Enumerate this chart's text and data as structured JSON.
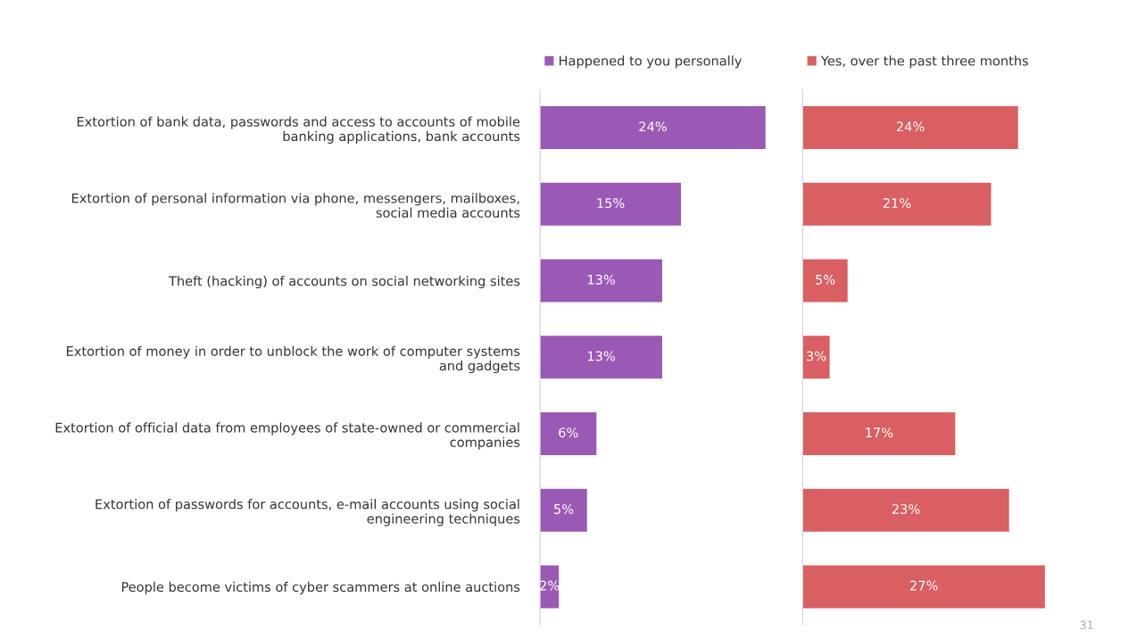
{
  "chart_data": [
    {
      "type": "bar",
      "orientation": "horizontal",
      "categories": [
        "Extortion of bank data, passwords and access to accounts of mobile banking applications, bank accounts",
        "Extortion of personal information via phone, messengers, mailboxes, social media accounts",
        "Theft (hacking) of accounts on social networking sites",
        "Extortion of money in order to unblock the work of computer systems and gadgets",
        "Extortion of official data from employees of state-owned or commercial companies",
        "Extortion of passwords for accounts, e-mail accounts using social engineering techniques",
        "People become victims of cyber scammers at online auctions"
      ],
      "series": [
        {
          "name": "Happened to you personally",
          "color": "#9b59b6",
          "values": [
            24,
            15,
            13,
            13,
            6,
            5,
            2
          ],
          "value_labels": [
            "24%",
            "15%",
            "13%",
            "13%",
            "6%",
            "5%",
            "2%"
          ]
        }
      ],
      "legend": "top",
      "grid": false
    },
    {
      "type": "bar",
      "orientation": "horizontal",
      "categories": [
        null,
        null,
        null,
        null,
        null,
        null,
        null
      ],
      "series": [
        {
          "name": "Yes, over the past three months",
          "color": "#d95f62",
          "values": [
            24,
            21,
            5,
            3,
            17,
            23,
            27
          ],
          "value_labels": [
            "24%",
            "21%",
            "5%",
            "3%",
            "17%",
            "23%",
            "27%"
          ]
        }
      ],
      "legend": "top",
      "grid": false,
      "annotations": [
        "31"
      ]
    }
  ]
}
